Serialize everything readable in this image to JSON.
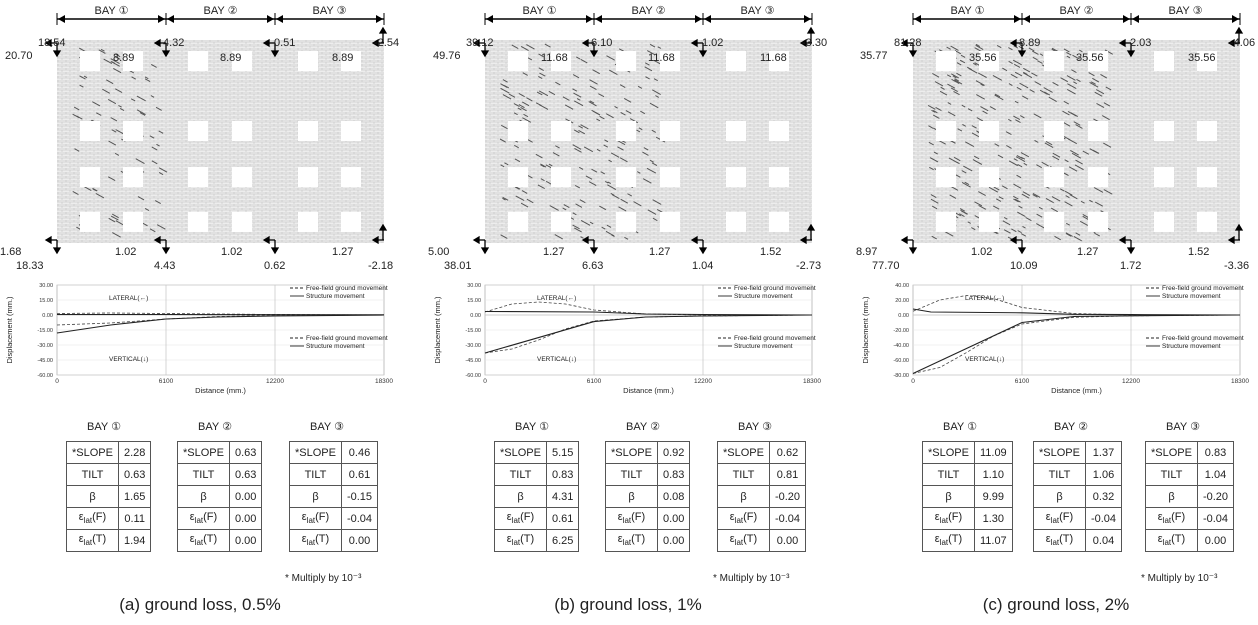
{
  "panels": [
    {
      "caption": "(a) ground loss, 0.5%",
      "bays": [
        "BAY ①",
        "BAY ②",
        "BAY ③"
      ],
      "top_outer": [
        "18.54",
        "4.32",
        "0.51",
        "-2.54"
      ],
      "top_inner": [
        "20.70",
        "8.89",
        "8.89",
        "8.89"
      ],
      "bottom_outer": [
        "1.68",
        "1.02",
        "1.02",
        "1.27"
      ],
      "bottom_inner": [
        "18.33",
        "4.43",
        "0.62",
        "-2.18"
      ],
      "tables": [
        {
          "title": "BAY ①",
          "values": [
            "2.28",
            "0.63",
            "1.65",
            "0.11",
            "1.94"
          ]
        },
        {
          "title": "BAY ②",
          "values": [
            "0.63",
            "0.63",
            "0.00",
            "0.00",
            "0.00"
          ]
        },
        {
          "title": "BAY ③",
          "values": [
            "0.46",
            "0.61",
            "-0.15",
            "-0.04",
            "0.00"
          ]
        }
      ],
      "damage": 1
    },
    {
      "caption": "(b) ground loss, 1%",
      "bays": [
        "BAY ①",
        "BAY ②",
        "BAY ③"
      ],
      "top_outer": [
        "39.12",
        "6.10",
        "1.02",
        "-3.30"
      ],
      "top_inner": [
        "49.76",
        "11.68",
        "11.68",
        "11.68"
      ],
      "bottom_outer": [
        "5.00",
        "1.27",
        "1.27",
        "1.52"
      ],
      "bottom_inner": [
        "38.01",
        "6.63",
        "1.04",
        "-2.73"
      ],
      "tables": [
        {
          "title": "BAY ①",
          "values": [
            "5.15",
            "0.83",
            "4.31",
            "0.61",
            "6.25"
          ]
        },
        {
          "title": "BAY ②",
          "values": [
            "0.92",
            "0.83",
            "0.08",
            "0.00",
            "0.00"
          ]
        },
        {
          "title": "BAY ③",
          "values": [
            "0.62",
            "0.81",
            "-0.20",
            "-0.04",
            "0.00"
          ]
        }
      ],
      "damage": 2
    },
    {
      "caption": "(c) ground loss, 2%",
      "bays": [
        "BAY ①",
        "BAY ②",
        "BAY ③"
      ],
      "top_outer": [
        "81.28",
        "8.89",
        "2.03",
        "-4.06"
      ],
      "top_inner": [
        "35.77",
        "35.56",
        "35.56",
        "35.56"
      ],
      "bottom_outer": [
        "8.97",
        "1.02",
        "1.27",
        "1.52"
      ],
      "bottom_inner": [
        "77.70",
        "10.09",
        "1.72",
        "-3.36"
      ],
      "tables": [
        {
          "title": "BAY ①",
          "values": [
            "11.09",
            "1.10",
            "9.99",
            "1.30",
            "11.07"
          ]
        },
        {
          "title": "BAY ②",
          "values": [
            "1.37",
            "1.06",
            "0.32",
            "-0.04",
            "0.04"
          ]
        },
        {
          "title": "BAY ③",
          "values": [
            "0.83",
            "1.04",
            "-0.20",
            "-0.04",
            "0.00"
          ]
        }
      ],
      "damage": 3
    }
  ],
  "table_rows": [
    "*SLOPE",
    "TILT",
    "β",
    "εlat(F)",
    "εlat(T)"
  ],
  "note": "* Multiply  by 10⁻³",
  "chart_data": [
    {
      "type": "line",
      "xlabel": "Distance (mm.)",
      "ylabel": "Displacement (mm.)",
      "x_ticks": [
        0,
        6100,
        12200,
        18300
      ],
      "y_ticks": [
        "30.00",
        "15.00",
        "0.00",
        "-15.00",
        "-30.00",
        "-45.00",
        "-60.00"
      ],
      "ylim": [
        -60,
        30
      ],
      "annotations": [
        "LATERAL(←)",
        "VERTICAL(↓)"
      ],
      "legend": [
        "Free-field ground movement",
        "Structure movement"
      ],
      "series": [
        {
          "name": "Free-field ground movement",
          "group": "LATERAL",
          "x": [
            0,
            3000,
            6100,
            9000,
            12200,
            18300
          ],
          "y": [
            1.5,
            2,
            1.5,
            1,
            0.5,
            0
          ]
        },
        {
          "name": "Structure movement",
          "group": "LATERAL",
          "x": [
            0,
            6100,
            12200,
            18300
          ],
          "y": [
            0.5,
            0.5,
            0.3,
            0.2
          ]
        },
        {
          "name": "Free-field ground movement",
          "group": "VERTICAL",
          "x": [
            0,
            3000,
            6100,
            9000,
            12200,
            18300
          ],
          "y": [
            -10,
            -8,
            -4,
            -1.5,
            -0.5,
            0
          ]
        },
        {
          "name": "Structure movement",
          "group": "VERTICAL",
          "x": [
            0,
            3000,
            6100,
            9000,
            12200,
            18300
          ],
          "y": [
            -18,
            -10,
            -4,
            -2,
            -1,
            0
          ]
        }
      ]
    },
    {
      "type": "line",
      "xlabel": "Distance (mm.)",
      "ylabel": "Displacement (mm.)",
      "x_ticks": [
        0,
        6100,
        12200,
        18300
      ],
      "y_ticks": [
        "30.00",
        "15.00",
        "0.00",
        "-15.00",
        "-30.00",
        "-45.00",
        "-60.00"
      ],
      "ylim": [
        -60,
        30
      ],
      "annotations": [
        "LATERAL(←)",
        "VERTICAL(↓)"
      ],
      "legend": [
        "Free-field ground movement",
        "Structure movement"
      ],
      "series": [
        {
          "name": "Free-field ground movement",
          "group": "LATERAL",
          "x": [
            0,
            1500,
            3000,
            4500,
            6100,
            9000,
            12200,
            18300
          ],
          "y": [
            3,
            11,
            13,
            11,
            5,
            1,
            0,
            0
          ]
        },
        {
          "name": "Structure movement",
          "group": "LATERAL",
          "x": [
            0,
            6100,
            9000,
            12200,
            18300
          ],
          "y": [
            3.5,
            3,
            1,
            0.5,
            0
          ]
        },
        {
          "name": "Free-field ground movement",
          "group": "VERTICAL",
          "x": [
            0,
            1500,
            3000,
            4500,
            6100,
            9000,
            12200,
            18300
          ],
          "y": [
            -38,
            -34,
            -25,
            -14,
            -6,
            -2,
            -1,
            0
          ]
        },
        {
          "name": "Structure movement",
          "group": "VERTICAL",
          "x": [
            0,
            6100,
            9000,
            12200,
            18300
          ],
          "y": [
            -38,
            -6.6,
            -2,
            -1,
            0
          ]
        }
      ]
    },
    {
      "type": "line",
      "xlabel": "Distance (mm.)",
      "ylabel": "Displacement (mm.)",
      "x_ticks": [
        0,
        6100,
        12200,
        18300
      ],
      "y_ticks": [
        "40.00",
        "20.00",
        "0.00",
        "-20.00",
        "-40.00",
        "-60.00",
        "-80.00"
      ],
      "ylim": [
        -80,
        40
      ],
      "annotations": [
        "LATERAL(←)",
        "VERTICAL(↓)"
      ],
      "legend": [
        "Free-field ground movement",
        "Structure movement"
      ],
      "series": [
        {
          "name": "Free-field ground movement",
          "group": "LATERAL",
          "x": [
            0,
            1500,
            3000,
            4500,
            6100,
            9000,
            12200,
            18300
          ],
          "y": [
            5,
            20,
            26,
            22,
            10,
            2,
            0,
            0
          ]
        },
        {
          "name": "Structure movement",
          "group": "LATERAL",
          "x": [
            0,
            1000,
            6100,
            9000,
            12200,
            18300
          ],
          "y": [
            8,
            4,
            3,
            1,
            0.5,
            0
          ]
        },
        {
          "name": "Free-field ground movement",
          "group": "VERTICAL",
          "x": [
            0,
            1500,
            3000,
            4500,
            6100,
            9000,
            12200,
            18300
          ],
          "y": [
            -78,
            -70,
            -50,
            -28,
            -12,
            -3,
            -1,
            0
          ]
        },
        {
          "name": "Structure movement",
          "group": "VERTICAL",
          "x": [
            0,
            6100,
            9000,
            12200,
            18300
          ],
          "y": [
            -78,
            -10,
            -2,
            -1,
            0
          ]
        }
      ]
    }
  ]
}
